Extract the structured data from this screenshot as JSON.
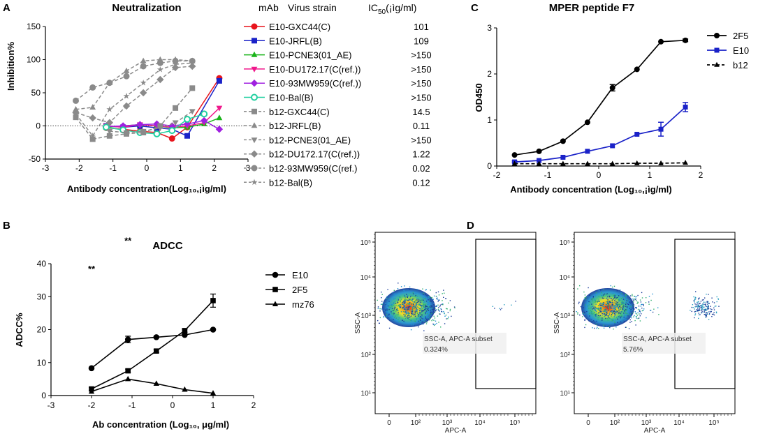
{
  "panels": {
    "A": {
      "letter": "A",
      "chart_data": {
        "type": "line",
        "title": "Neutralization",
        "xlabel": "Antibody concentration(Log₁₀,¡ìg/ml)",
        "ylabel": "Inhibition%",
        "xlim": [
          -3,
          3
        ],
        "ylim": [
          -50,
          150
        ],
        "xticks": [
          "-3",
          "-2",
          "-1",
          "0",
          "1",
          "2",
          "3"
        ],
        "yticks": [
          "-50",
          "0",
          "50",
          "100",
          "150"
        ],
        "legend_headers": {
          "mab": "mAb",
          "virus": "Virus strain",
          "ic50": "IC",
          "ic50_sub": "50",
          "ic50_unit": "(¡ìg/ml)"
        },
        "series": [
          {
            "name": "E10-GXC44(C)",
            "ic50": "101",
            "color": "#e8141c",
            "marker": "circle",
            "dash": "solid",
            "x": [
              -1.2,
              -0.7,
              -0.2,
              0.3,
              0.75,
              1.2,
              2.15
            ],
            "y": [
              -3,
              -5,
              -8,
              -10,
              -19,
              -2,
              72
            ]
          },
          {
            "name": "E10-JRFL(B)",
            "ic50": "109",
            "color": "#1a22c8",
            "marker": "square",
            "dash": "solid",
            "x": [
              -1.2,
              -0.7,
              -0.2,
              0.3,
              0.75,
              1.2,
              2.15
            ],
            "y": [
              0,
              -2,
              0,
              -3,
              -5,
              -15,
              68
            ]
          },
          {
            "name": "E10-PCNE3(01_AE)",
            "ic50": ">150",
            "color": "#19b319",
            "marker": "triangle",
            "dash": "solid",
            "x": [
              -1.2,
              -0.7,
              -0.2,
              0.3,
              0.75,
              1.2,
              1.7,
              2.15
            ],
            "y": [
              -2,
              0,
              2,
              0,
              -3,
              -2,
              3,
              12
            ]
          },
          {
            "name": "E10-DU172.17(C(ref.))",
            "ic50": ">150",
            "color": "#f0188c",
            "marker": "triangle-down",
            "dash": "solid",
            "x": [
              -1.2,
              -0.7,
              -0.2,
              0.3,
              0.75,
              1.2,
              1.7,
              2.15
            ],
            "y": [
              0,
              -2,
              2,
              0,
              -2,
              0,
              5,
              27
            ]
          },
          {
            "name": "E10-93MW959(C(ref.))",
            "ic50": ">150",
            "color": "#a020e0",
            "marker": "diamond",
            "dash": "solid",
            "x": [
              -1.2,
              -0.7,
              -0.2,
              0.3,
              0.75,
              1.2,
              1.7,
              2.15
            ],
            "y": [
              -1,
              0,
              2,
              3,
              0,
              3,
              8,
              -5
            ]
          },
          {
            "name": "E10-Bal(B)",
            "ic50": ">150",
            "color": "#20d0a0",
            "marker": "circle-open",
            "dash": "solid",
            "x": [
              -1.2,
              -0.7,
              -0.2,
              0.3,
              0.75,
              1.2,
              1.7
            ],
            "y": [
              -2,
              -6,
              -10,
              -12,
              -7,
              10,
              18
            ]
          },
          {
            "name": "b12-GXC44(C)",
            "ic50": "14.5",
            "color": "#8a8a8a",
            "marker": "square",
            "dash": "dashed",
            "x": [
              -2.1,
              -1.6,
              -1.1,
              -0.6,
              -0.1,
              0.4,
              0.85,
              1.35
            ],
            "y": [
              13,
              -20,
              -15,
              -12,
              -10,
              0,
              27,
              57
            ]
          },
          {
            "name": "b12-JRFL(B)",
            "ic50": "0.11",
            "color": "#8a8a8a",
            "marker": "triangle",
            "dash": "dashed",
            "x": [
              -2.1,
              -1.6,
              -1.1,
              -0.6,
              -0.1,
              0.4,
              0.85,
              1.35
            ],
            "y": [
              25,
              28,
              65,
              83,
              98,
              100,
              100,
              98
            ]
          },
          {
            "name": "b12-PCNE3(01_AE)",
            "ic50": ">150",
            "color": "#8a8a8a",
            "marker": "triangle-down",
            "dash": "dashed",
            "x": [
              -1.1,
              -0.6,
              -0.1,
              0.4,
              0.85,
              1.35
            ],
            "y": [
              -8,
              -10,
              -8,
              -3,
              5,
              22
            ]
          },
          {
            "name": "b12-DU172.17(C(ref.))",
            "ic50": "1.22",
            "color": "#8a8a8a",
            "marker": "diamond",
            "dash": "dashed",
            "x": [
              -2.1,
              -1.6,
              -1.1,
              -0.6,
              -0.1,
              0.4,
              0.85,
              1.35
            ],
            "y": [
              20,
              12,
              5,
              30,
              50,
              70,
              88,
              90
            ]
          },
          {
            "name": "b12-93MW959(C(ref.)",
            "ic50": "0.02",
            "color": "#8a8a8a",
            "marker": "circle",
            "dash": "dashed",
            "x": [
              -2.1,
              -1.6,
              -1.1,
              -0.6,
              -0.1,
              0.4,
              0.85,
              1.35
            ],
            "y": [
              38,
              58,
              65,
              75,
              90,
              95,
              98,
              98
            ]
          },
          {
            "name": "b12-Bal(B)",
            "ic50": "0.12",
            "color": "#8a8a8a",
            "marker": "star",
            "dash": "dashed",
            "x": [
              -2.1,
              -1.6,
              -1.1,
              -0.6,
              -0.1,
              0.4,
              0.85,
              1.35
            ],
            "y": [
              18,
              -15,
              25,
              45,
              65,
              85,
              93,
              95
            ]
          }
        ]
      }
    },
    "B": {
      "letter": "B",
      "chart_data": {
        "type": "line",
        "title": "ADCC",
        "xlabel": "Ab concentration (Log₁₀, μg/ml)",
        "ylabel": "ADCC%",
        "xlim": [
          -3,
          2
        ],
        "ylim": [
          0,
          40
        ],
        "xticks": [
          "-3",
          "-2",
          "-1",
          "0",
          "1",
          "2"
        ],
        "yticks": [
          "0",
          "10",
          "20",
          "30",
          "40"
        ],
        "annotations": [
          {
            "text": "**",
            "x": -2,
            "y": 37.5
          },
          {
            "text": "**",
            "x": -1.1,
            "y": 46
          }
        ],
        "series": [
          {
            "name": "E10",
            "marker": "circle",
            "x": [
              -2,
              -1.1,
              -0.4,
              0.3,
              1
            ],
            "y": [
              8.3,
              17,
              17.7,
              18.4,
              20
            ],
            "err": [
              0,
              1,
              0,
              0,
              0
            ]
          },
          {
            "name": "2F5",
            "marker": "square",
            "x": [
              -2,
              -1.1,
              -0.4,
              0.3,
              1
            ],
            "y": [
              2,
              7.5,
              13.5,
              19.7,
              28.8
            ],
            "err": [
              0.5,
              0.5,
              0.5,
              0.5,
              2
            ]
          },
          {
            "name": "mz76",
            "marker": "triangle",
            "x": [
              -2,
              -1.1,
              -0.4,
              0.3,
              1
            ],
            "y": [
              1.2,
              5,
              3.6,
              1.8,
              0.7
            ],
            "err": [
              0,
              0,
              0,
              0,
              0
            ]
          }
        ]
      }
    },
    "C": {
      "letter": "C",
      "chart_data": {
        "type": "line",
        "title": "MPER peptide F7",
        "xlabel": "Antibody concentration (Log₁₀,¡ìg/ml)",
        "ylabel": "OD450",
        "xlim": [
          -2,
          2
        ],
        "ylim": [
          0,
          3
        ],
        "xticks": [
          "-2",
          "-1",
          "0",
          "1",
          "2"
        ],
        "yticks": [
          "0",
          "1",
          "2",
          "3"
        ],
        "series": [
          {
            "name": "2F5",
            "color": "#000000",
            "marker": "circle",
            "dash": "solid",
            "x": [
              -1.65,
              -1.17,
              -0.7,
              -0.22,
              0.27,
              0.75,
              1.22,
              1.7
            ],
            "y": [
              0.24,
              0.32,
              0.54,
              0.95,
              1.7,
              2.1,
              2.7,
              2.73
            ],
            "err": [
              0,
              0,
              0,
              0,
              0.07,
              0,
              0,
              0.03
            ]
          },
          {
            "name": "E10",
            "color": "#1a22c8",
            "marker": "square",
            "dash": "solid",
            "x": [
              -1.65,
              -1.17,
              -0.7,
              -0.22,
              0.27,
              0.75,
              1.22,
              1.7
            ],
            "y": [
              0.09,
              0.12,
              0.19,
              0.32,
              0.44,
              0.69,
              0.8,
              1.28
            ],
            "err": [
              0.02,
              0,
              0,
              0,
              0,
              0,
              0.15,
              0.1
            ]
          },
          {
            "name": "b12",
            "color": "#000000",
            "marker": "triangle",
            "dash": "dashed",
            "x": [
              -1.65,
              -1.17,
              -0.7,
              -0.22,
              0.27,
              0.75,
              1.22,
              1.7
            ],
            "y": [
              0.05,
              0.05,
              0.05,
              0.05,
              0.05,
              0.06,
              0.06,
              0.07
            ],
            "err": [
              0,
              0,
              0,
              0,
              0,
              0,
              0,
              0
            ]
          }
        ]
      }
    },
    "D": {
      "letter": "D",
      "ylabel": "SSC-A",
      "xlabel": "APC-A",
      "y_ticks": [
        "10¹",
        "10²",
        "10³",
        "10⁴",
        "10⁵"
      ],
      "x_ticks": [
        "0",
        "10²",
        "10³",
        "10⁴",
        "10⁵"
      ],
      "plots": [
        {
          "gate_label": "SSC-A, APC-A subset",
          "percent": "0.324%"
        },
        {
          "gate_label": "SSC-A, APC-A subset",
          "percent": "5.76%"
        }
      ]
    }
  }
}
